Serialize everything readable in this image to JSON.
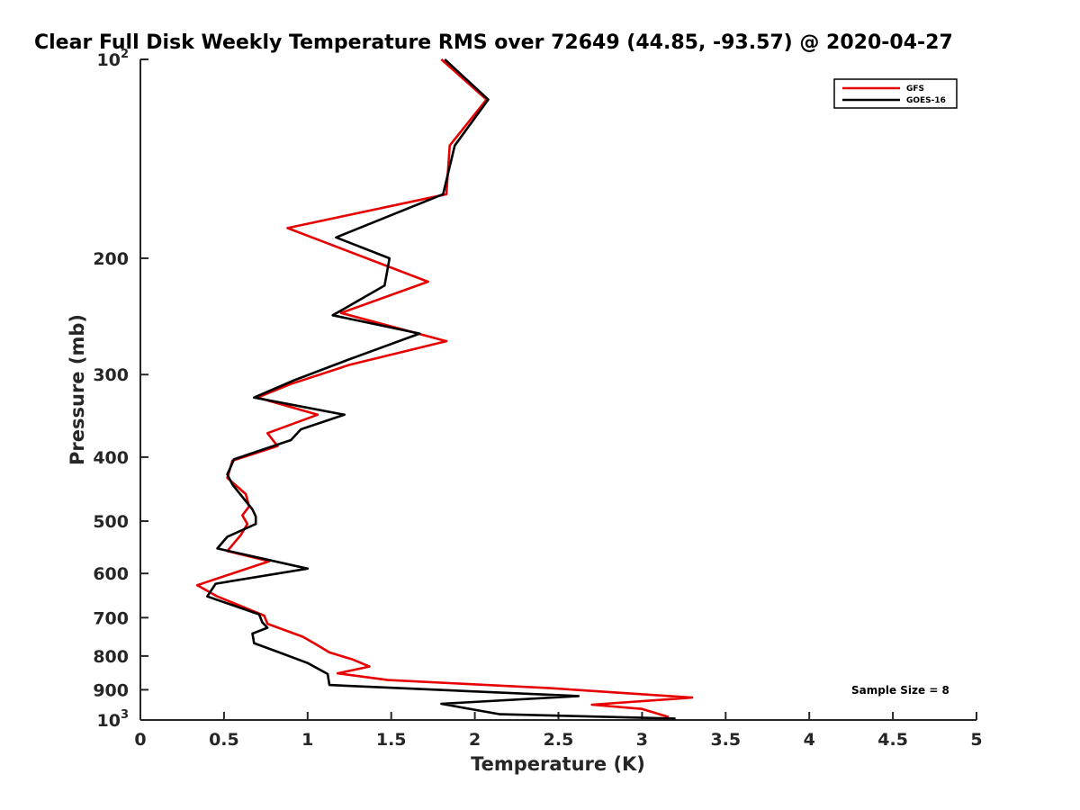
{
  "chart_data": {
    "type": "line",
    "title": "Clear Full Disk Weekly Temperature RMS over 72649 (44.85, -93.57) @ 2020-04-27",
    "xlabel": "Temperature (K)",
    "ylabel": "Pressure (mb)",
    "xlim": [
      0,
      5
    ],
    "ylim": [
      100,
      1000
    ],
    "y_scale": "log",
    "y_reversed": true,
    "x_ticks": [
      "0",
      "0.5",
      "1",
      "1.5",
      "2",
      "2.5",
      "3",
      "3.5",
      "4",
      "4.5",
      "5"
    ],
    "y_ticks": [
      {
        "base": "10",
        "exp": "2"
      },
      {
        "text": "200"
      },
      {
        "text": "300"
      },
      {
        "text": "400"
      },
      {
        "text": "500"
      },
      {
        "text": "600"
      },
      {
        "text": "700"
      },
      {
        "text": "800"
      },
      {
        "text": "900"
      },
      {
        "base": "10",
        "exp": "3"
      }
    ],
    "grid": false,
    "legend_position": "top-right",
    "annotation": "Sample Size = 8",
    "series": [
      {
        "name": "GFS",
        "color": "#e60000",
        "points": [
          [
            1.8,
            100
          ],
          [
            2.07,
            115
          ],
          [
            1.85,
            135
          ],
          [
            1.83,
            160
          ],
          [
            0.88,
            180
          ],
          [
            1.72,
            217
          ],
          [
            1.2,
            242
          ],
          [
            1.83,
            267
          ],
          [
            1.25,
            290
          ],
          [
            0.9,
            310
          ],
          [
            0.7,
            325
          ],
          [
            1.06,
            345
          ],
          [
            0.76,
            368
          ],
          [
            0.82,
            385
          ],
          [
            0.55,
            405
          ],
          [
            0.52,
            430
          ],
          [
            0.63,
            455
          ],
          [
            0.65,
            475
          ],
          [
            0.61,
            490
          ],
          [
            0.64,
            505
          ],
          [
            0.6,
            525
          ],
          [
            0.52,
            555
          ],
          [
            0.77,
            575
          ],
          [
            0.34,
            625
          ],
          [
            0.46,
            650
          ],
          [
            0.74,
            695
          ],
          [
            0.76,
            715
          ],
          [
            0.97,
            748
          ],
          [
            1.05,
            768
          ],
          [
            1.13,
            790
          ],
          [
            1.27,
            810
          ],
          [
            1.37,
            830
          ],
          [
            1.18,
            850
          ],
          [
            1.48,
            870
          ],
          [
            2.45,
            895
          ],
          [
            3.3,
            925
          ],
          [
            2.7,
            948
          ],
          [
            3.0,
            962
          ],
          [
            3.16,
            990
          ]
        ]
      },
      {
        "name": "GOES-16",
        "color": "#000000",
        "points": [
          [
            1.82,
            100
          ],
          [
            2.08,
            115
          ],
          [
            1.88,
            135
          ],
          [
            1.81,
            160
          ],
          [
            1.17,
            186
          ],
          [
            1.49,
            200
          ],
          [
            1.46,
            220
          ],
          [
            1.15,
            244
          ],
          [
            1.67,
            260
          ],
          [
            1.24,
            285
          ],
          [
            0.92,
            306
          ],
          [
            0.68,
            325
          ],
          [
            1.22,
            345
          ],
          [
            0.96,
            363
          ],
          [
            0.9,
            377
          ],
          [
            0.56,
            403
          ],
          [
            0.52,
            425
          ],
          [
            0.55,
            440
          ],
          [
            0.67,
            480
          ],
          [
            0.69,
            492
          ],
          [
            0.69,
            505
          ],
          [
            0.52,
            528
          ],
          [
            0.46,
            550
          ],
          [
            1.0,
            590
          ],
          [
            0.45,
            622
          ],
          [
            0.4,
            650
          ],
          [
            0.71,
            692
          ],
          [
            0.73,
            712
          ],
          [
            0.76,
            725
          ],
          [
            0.67,
            740
          ],
          [
            0.68,
            765
          ],
          [
            0.83,
            790
          ],
          [
            1.0,
            820
          ],
          [
            1.12,
            852
          ],
          [
            1.13,
            885
          ],
          [
            2.62,
            920
          ],
          [
            1.8,
            945
          ],
          [
            2.15,
            980
          ],
          [
            3.2,
            995
          ]
        ]
      }
    ]
  }
}
